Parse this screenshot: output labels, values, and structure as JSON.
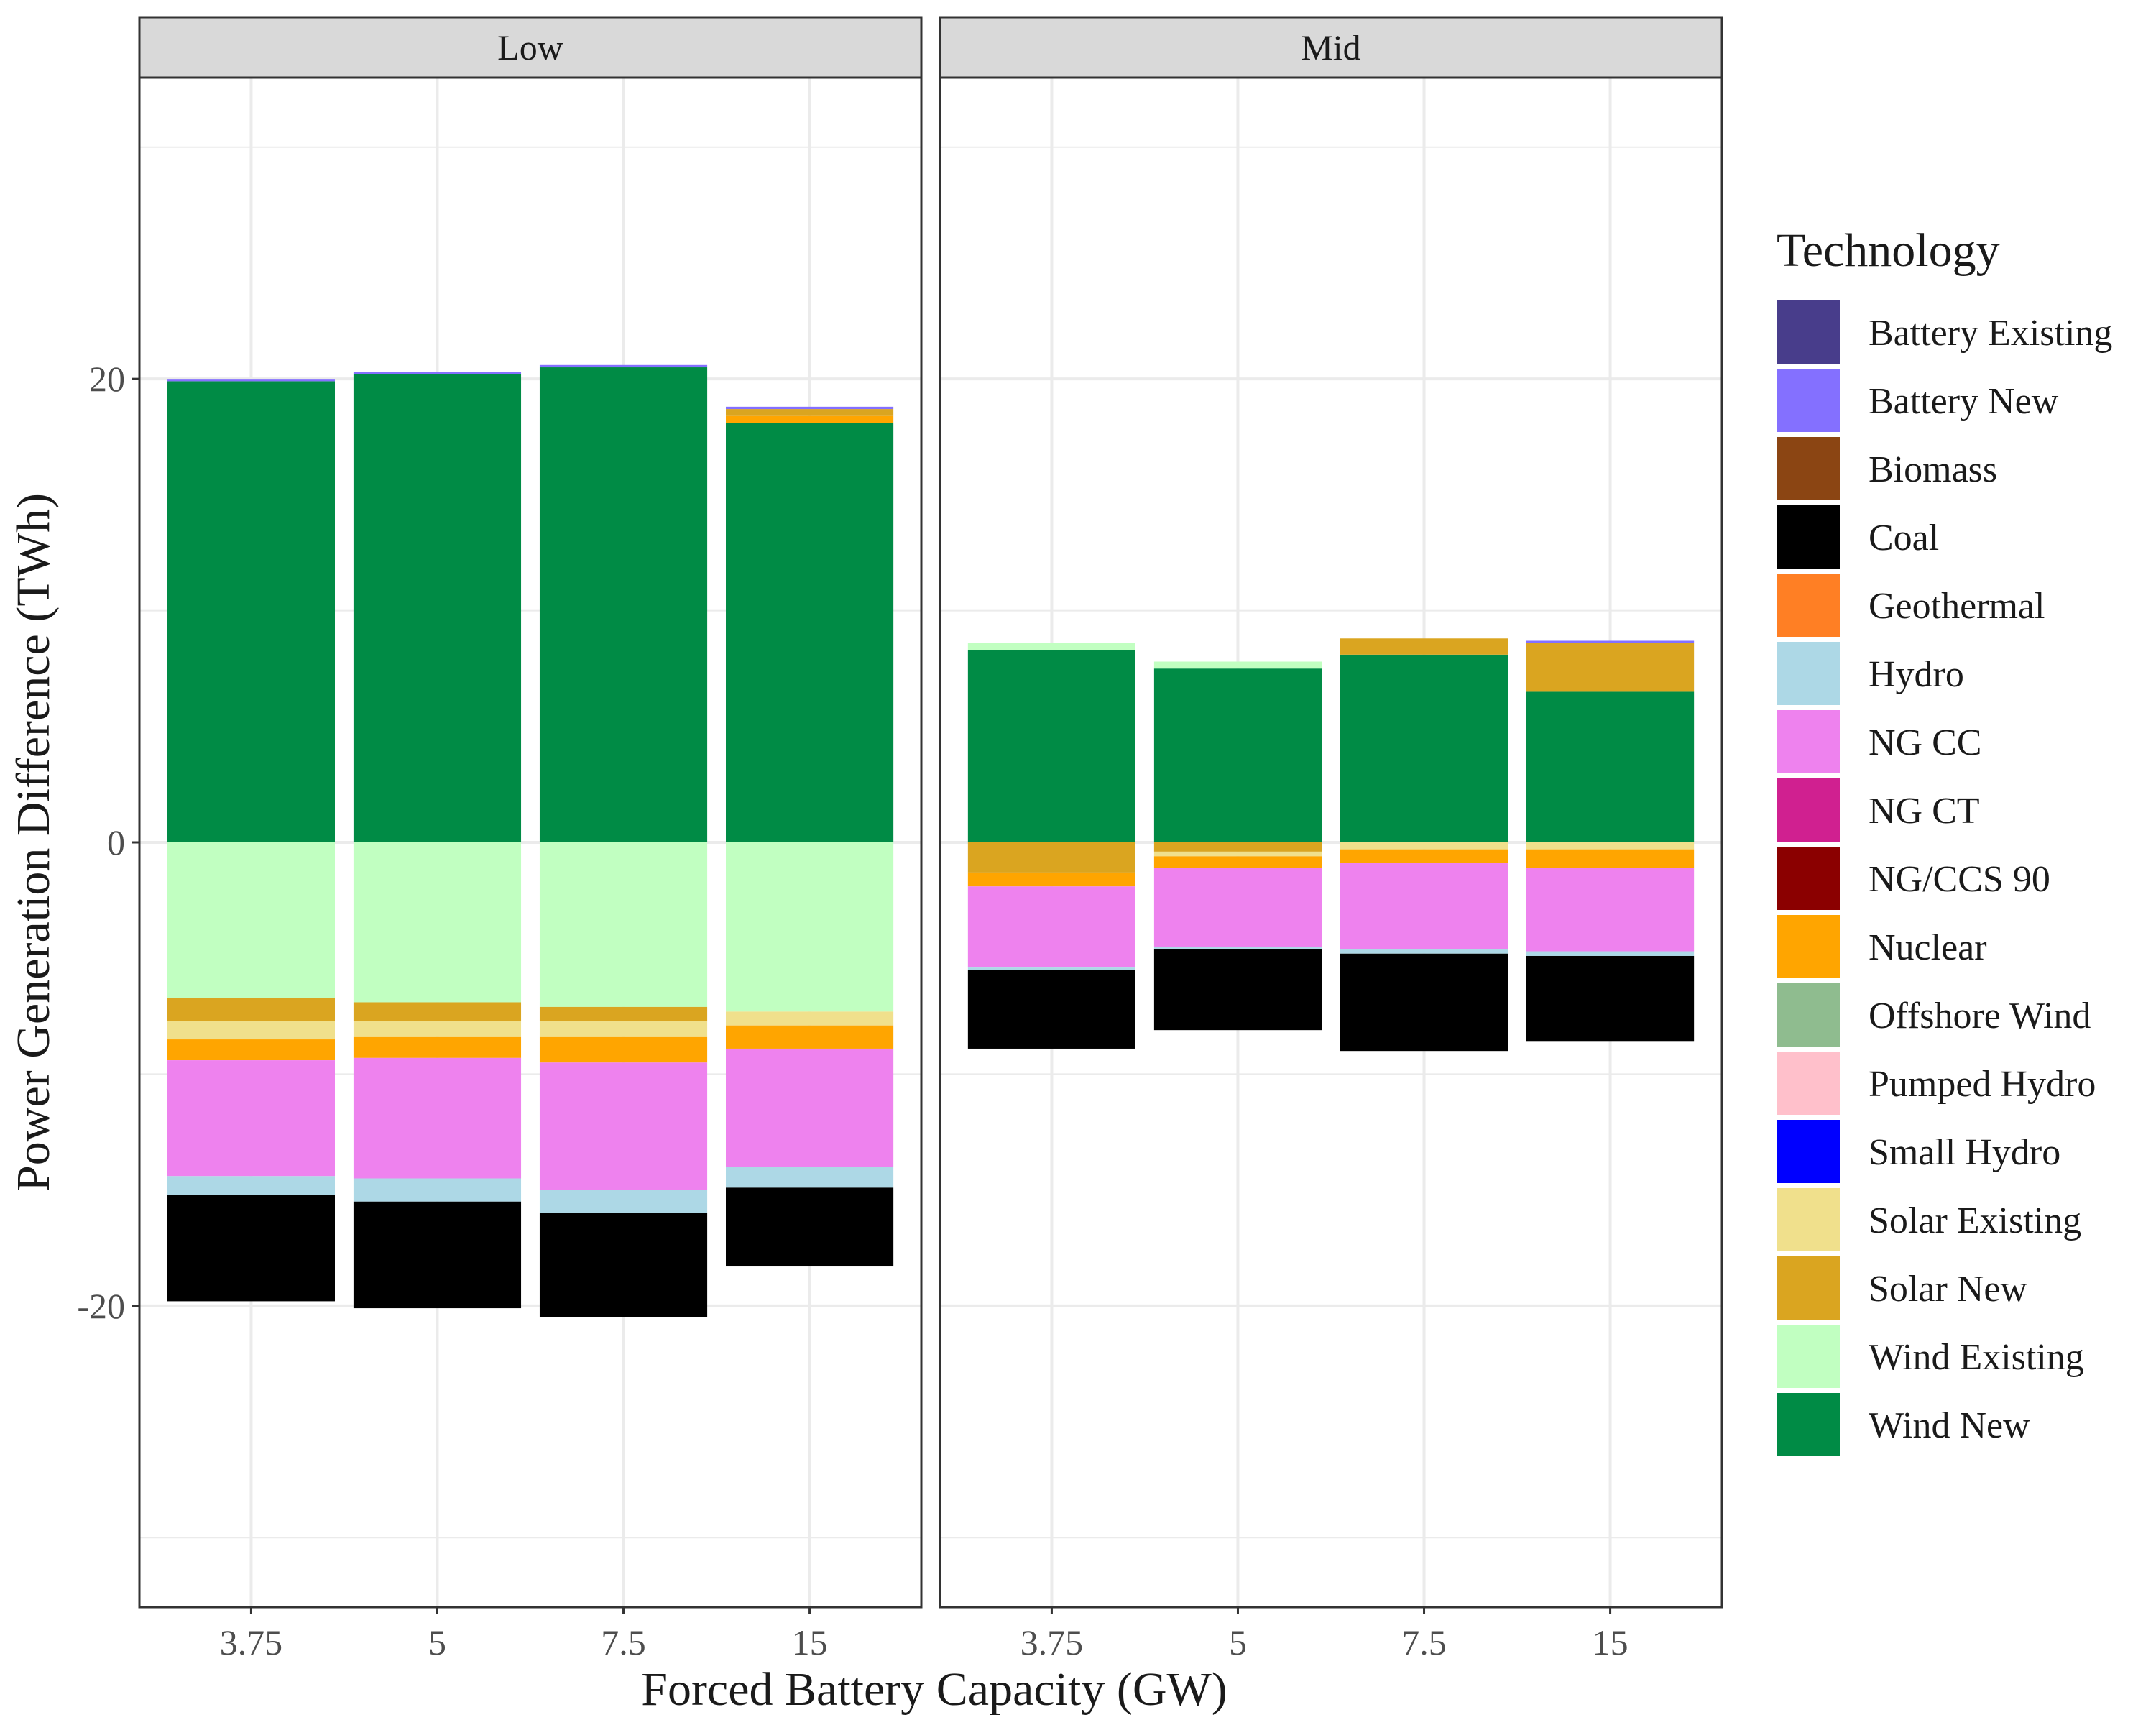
{
  "chart_data": {
    "type": "bar",
    "stacked": true,
    "xlabel": "Forced Battery Capacity (GW)",
    "ylabel": "Power Generation Difference (TWh)",
    "ylim": [
      -33,
      33
    ],
    "yticks": [
      -20,
      0,
      20
    ],
    "yticks_labels": [
      "-20",
      "0",
      "20"
    ],
    "categories": [
      "3.75",
      "5",
      "7.5",
      "15"
    ],
    "facets": [
      "Low",
      "Mid"
    ],
    "legend": {
      "title": "Technology",
      "position": "right",
      "items": [
        {
          "name": "Battery Existing",
          "color": "#483D8B"
        },
        {
          "name": "Battery New",
          "color": "#8470FF"
        },
        {
          "name": "Biomass",
          "color": "#8B4513"
        },
        {
          "name": "Coal",
          "color": "#000000"
        },
        {
          "name": "Geothermal",
          "color": "#FF7F24"
        },
        {
          "name": "Hydro",
          "color": "#ADD8E6"
        },
        {
          "name": "NG CC",
          "color": "#EE82EE"
        },
        {
          "name": "NG CT",
          "color": "#D02090"
        },
        {
          "name": "NG/CCS 90",
          "color": "#8B0000"
        },
        {
          "name": "Nuclear",
          "color": "#FFA500"
        },
        {
          "name": "Offshore Wind",
          "color": "#8FBC8F"
        },
        {
          "name": "Pumped Hydro",
          "color": "#FFC0CB"
        },
        {
          "name": "Small Hydro",
          "color": "#0000FF"
        },
        {
          "name": "Solar Existing",
          "color": "#F0E08C"
        },
        {
          "name": "Solar New",
          "color": "#DAA520"
        },
        {
          "name": "Wind Existing",
          "color": "#C1FFC1"
        },
        {
          "name": "Wind New",
          "color": "#008B45"
        }
      ]
    },
    "panels": [
      {
        "facet": "Low",
        "bars": [
          {
            "category": "3.75",
            "positive": [
              {
                "tech": "Wind New",
                "value": 19.9
              },
              {
                "tech": "Battery New",
                "value": 0.1
              }
            ],
            "negative": [
              {
                "tech": "Wind Existing",
                "value": -6.7
              },
              {
                "tech": "Solar New",
                "value": -1.0
              },
              {
                "tech": "Solar Existing",
                "value": -0.8
              },
              {
                "tech": "Nuclear",
                "value": -0.9
              },
              {
                "tech": "NG CC",
                "value": -5.0
              },
              {
                "tech": "Hydro",
                "value": -0.8
              },
              {
                "tech": "Coal",
                "value": -4.6
              }
            ]
          },
          {
            "category": "5",
            "positive": [
              {
                "tech": "Wind New",
                "value": 20.2
              },
              {
                "tech": "Battery New",
                "value": 0.1
              }
            ],
            "negative": [
              {
                "tech": "Wind Existing",
                "value": -6.9
              },
              {
                "tech": "Solar New",
                "value": -0.8
              },
              {
                "tech": "Solar Existing",
                "value": -0.7
              },
              {
                "tech": "Nuclear",
                "value": -0.9
              },
              {
                "tech": "NG CC",
                "value": -5.2
              },
              {
                "tech": "Hydro",
                "value": -1.0
              },
              {
                "tech": "Coal",
                "value": -4.6
              }
            ]
          },
          {
            "category": "7.5",
            "positive": [
              {
                "tech": "Wind New",
                "value": 20.5
              },
              {
                "tech": "Battery New",
                "value": 0.1
              }
            ],
            "negative": [
              {
                "tech": "Wind Existing",
                "value": -7.1
              },
              {
                "tech": "Solar New",
                "value": -0.6
              },
              {
                "tech": "Solar Existing",
                "value": -0.7
              },
              {
                "tech": "Nuclear",
                "value": -1.1
              },
              {
                "tech": "NG CC",
                "value": -5.5
              },
              {
                "tech": "Hydro",
                "value": -1.0
              },
              {
                "tech": "Coal",
                "value": -4.5
              }
            ]
          },
          {
            "category": "15",
            "positive": [
              {
                "tech": "Wind New",
                "value": 18.1
              },
              {
                "tech": "Nuclear",
                "value": 0.3
              },
              {
                "tech": "Solar New",
                "value": 0.3
              },
              {
                "tech": "Battery New",
                "value": 0.1
              }
            ],
            "negative": [
              {
                "tech": "Wind Existing",
                "value": -7.3
              },
              {
                "tech": "Solar Existing",
                "value": -0.6
              },
              {
                "tech": "Nuclear",
                "value": -1.0
              },
              {
                "tech": "NG CC",
                "value": -5.1
              },
              {
                "tech": "Hydro",
                "value": -0.9
              },
              {
                "tech": "Coal",
                "value": -3.4
              }
            ]
          }
        ]
      },
      {
        "facet": "Mid",
        "bars": [
          {
            "category": "3.75",
            "positive": [
              {
                "tech": "Wind New",
                "value": 8.3
              },
              {
                "tech": "Wind Existing",
                "value": 0.3
              }
            ],
            "negative": [
              {
                "tech": "Solar New",
                "value": -1.3
              },
              {
                "tech": "Nuclear",
                "value": -0.6
              },
              {
                "tech": "NG CC",
                "value": -3.5
              },
              {
                "tech": "Hydro",
                "value": -0.1
              },
              {
                "tech": "Coal",
                "value": -3.4
              }
            ]
          },
          {
            "category": "5",
            "positive": [
              {
                "tech": "Wind New",
                "value": 7.5
              },
              {
                "tech": "Wind Existing",
                "value": 0.3
              }
            ],
            "negative": [
              {
                "tech": "Solar New",
                "value": -0.4
              },
              {
                "tech": "Solar Existing",
                "value": -0.2
              },
              {
                "tech": "Nuclear",
                "value": -0.5
              },
              {
                "tech": "NG CC",
                "value": -3.4
              },
              {
                "tech": "Hydro",
                "value": -0.1
              },
              {
                "tech": "Coal",
                "value": -3.5
              }
            ]
          },
          {
            "category": "7.5",
            "positive": [
              {
                "tech": "Wind New",
                "value": 8.1
              },
              {
                "tech": "Solar New",
                "value": 0.7
              }
            ],
            "negative": [
              {
                "tech": "Solar Existing",
                "value": -0.3
              },
              {
                "tech": "Nuclear",
                "value": -0.6
              },
              {
                "tech": "NG CC",
                "value": -3.7
              },
              {
                "tech": "Hydro",
                "value": -0.2
              },
              {
                "tech": "Coal",
                "value": -4.2
              }
            ]
          },
          {
            "category": "15",
            "positive": [
              {
                "tech": "Wind New",
                "value": 6.5
              },
              {
                "tech": "Solar New",
                "value": 2.1
              },
              {
                "tech": "Battery New",
                "value": 0.1
              }
            ],
            "negative": [
              {
                "tech": "Solar Existing",
                "value": -0.3
              },
              {
                "tech": "Nuclear",
                "value": -0.8
              },
              {
                "tech": "NG CC",
                "value": -3.6
              },
              {
                "tech": "Hydro",
                "value": -0.2
              },
              {
                "tech": "Coal",
                "value": -3.7
              }
            ]
          }
        ]
      }
    ]
  }
}
